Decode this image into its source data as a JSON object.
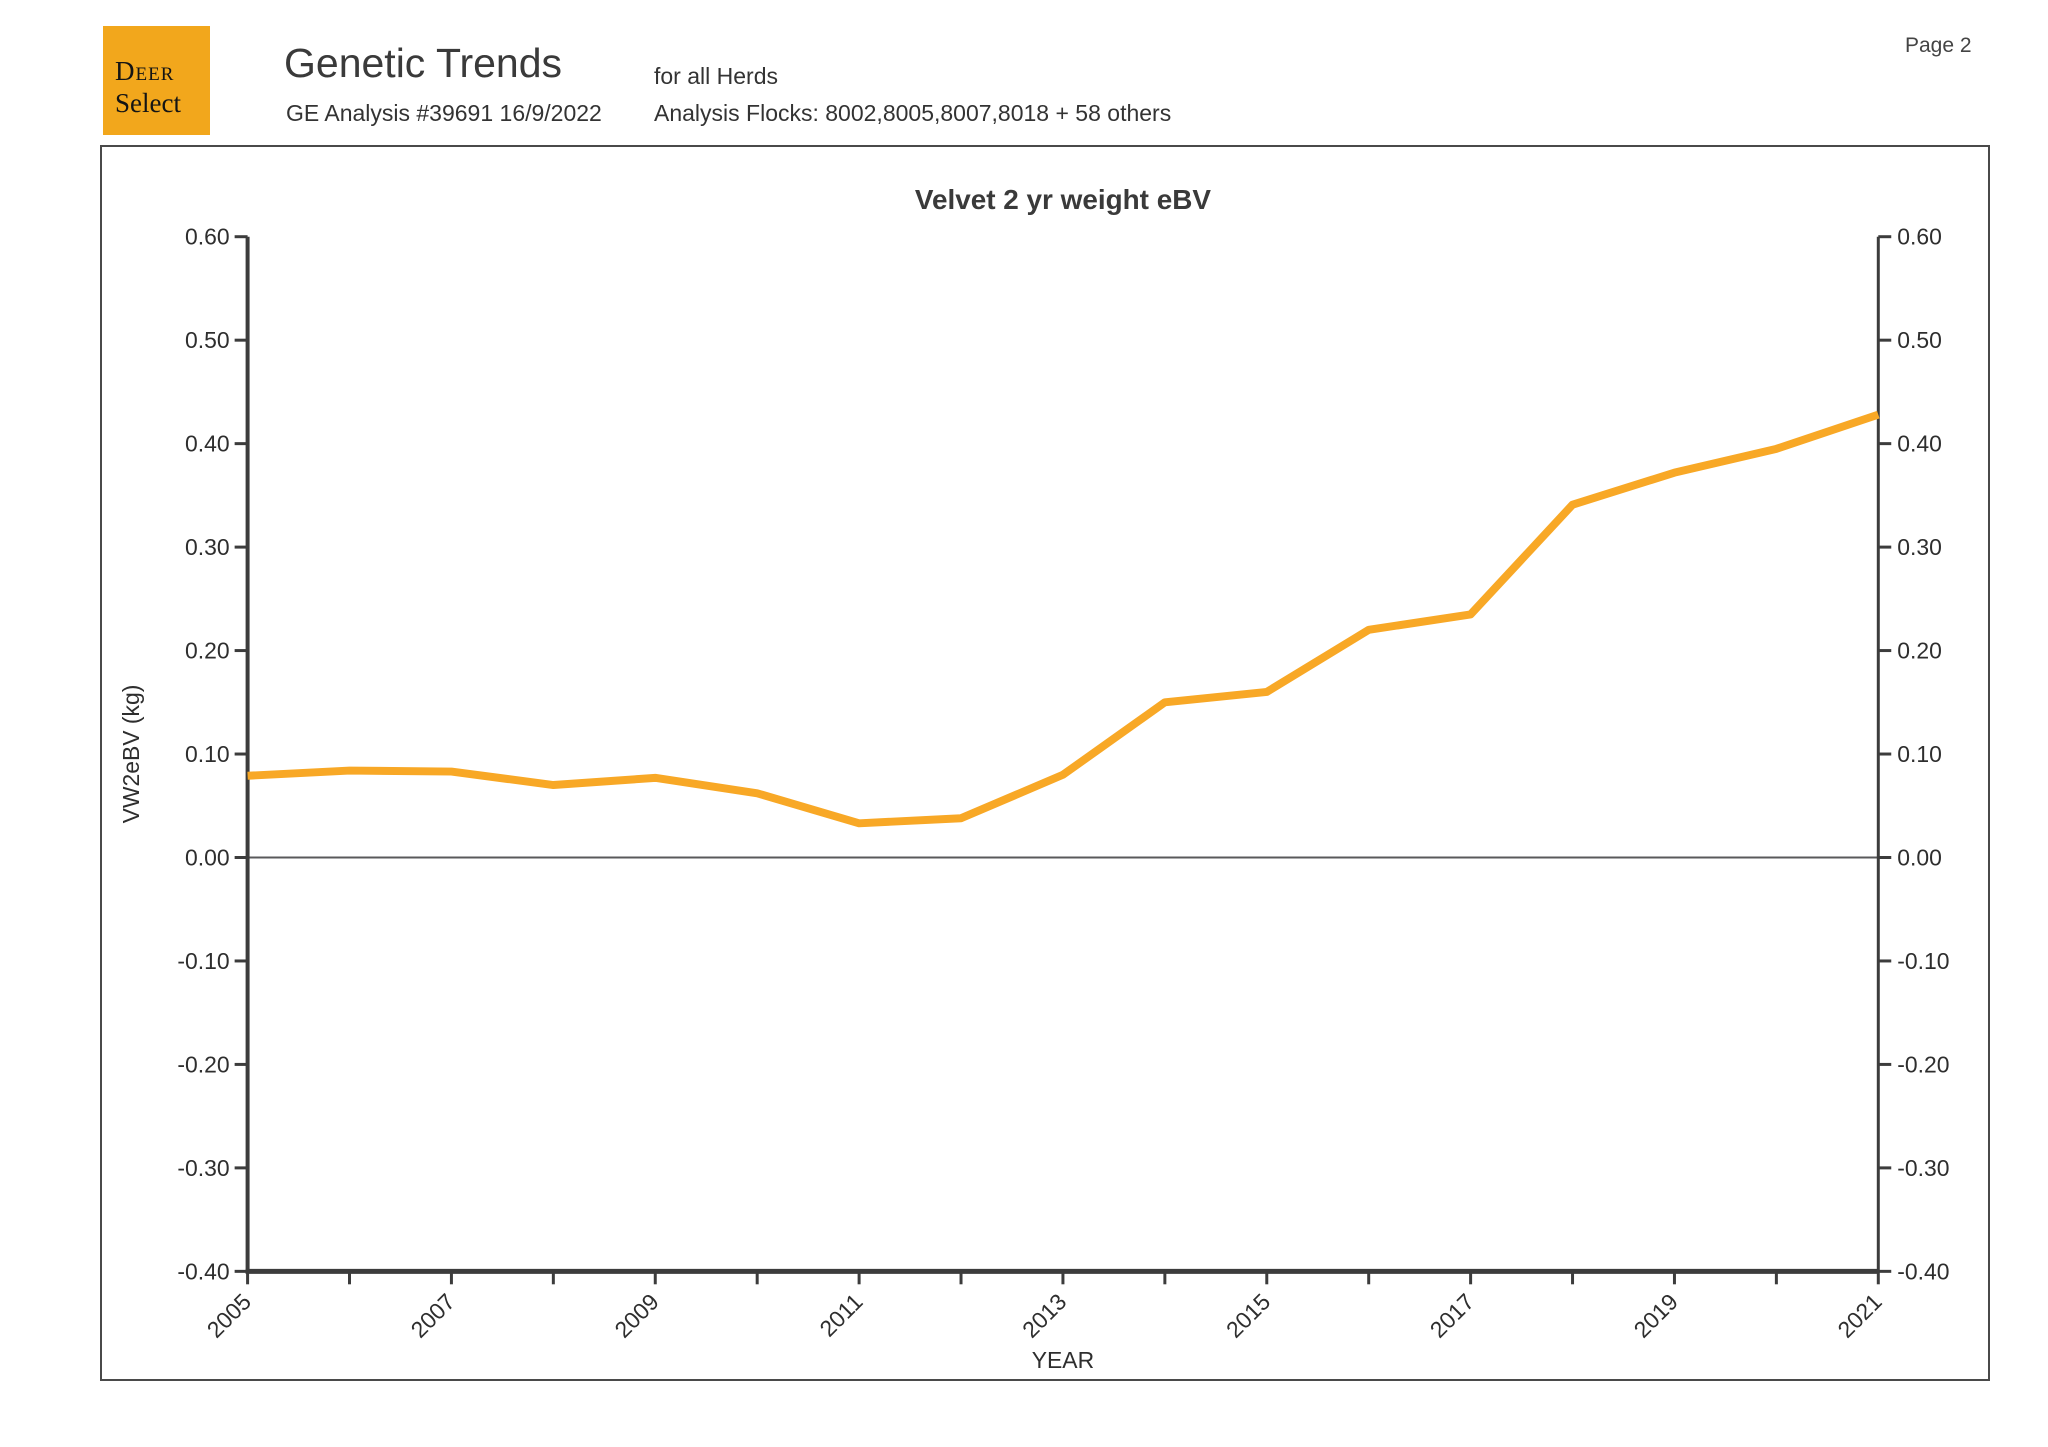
{
  "page": {
    "label": "Page 2"
  },
  "logo": {
    "line1": "Deer",
    "line2": "Select",
    "bg_color": "#F2A71C"
  },
  "header": {
    "title": "Genetic Trends",
    "analysis": "GE Analysis #39691 16/9/2022",
    "herds": "for all Herds",
    "flocks": "Analysis Flocks: 8002,8005,8007,8018 + 58 others"
  },
  "chart_data": {
    "type": "line",
    "title": "Velvet 2 yr weight eBV",
    "xlabel": "YEAR",
    "ylabel": "VW2eBV (kg)",
    "x": [
      2005,
      2006,
      2007,
      2008,
      2009,
      2010,
      2011,
      2012,
      2013,
      2014,
      2015,
      2016,
      2017,
      2018,
      2019,
      2020,
      2021
    ],
    "series": [
      {
        "name": "Velvet 2 yr weight eBV trend",
        "values": [
          0.079,
          0.084,
          0.083,
          0.07,
          0.077,
          0.062,
          0.033,
          0.038,
          0.08,
          0.15,
          0.16,
          0.22,
          0.235,
          0.341,
          0.372,
          0.395,
          0.428
        ]
      }
    ],
    "xlim": [
      2005,
      2021
    ],
    "ylim": [
      -0.4,
      0.6
    ],
    "ytick_step": 0.1,
    "xtick_step": 1,
    "xtick_label_step": 2,
    "xtick_label_rotation": 45,
    "grid": false,
    "legend": "none",
    "zero_line": true,
    "right_axis_labels": true,
    "line_color": "#F8A826",
    "axis_color": "#3c3c3c",
    "zero_line_color": "#59595b"
  }
}
